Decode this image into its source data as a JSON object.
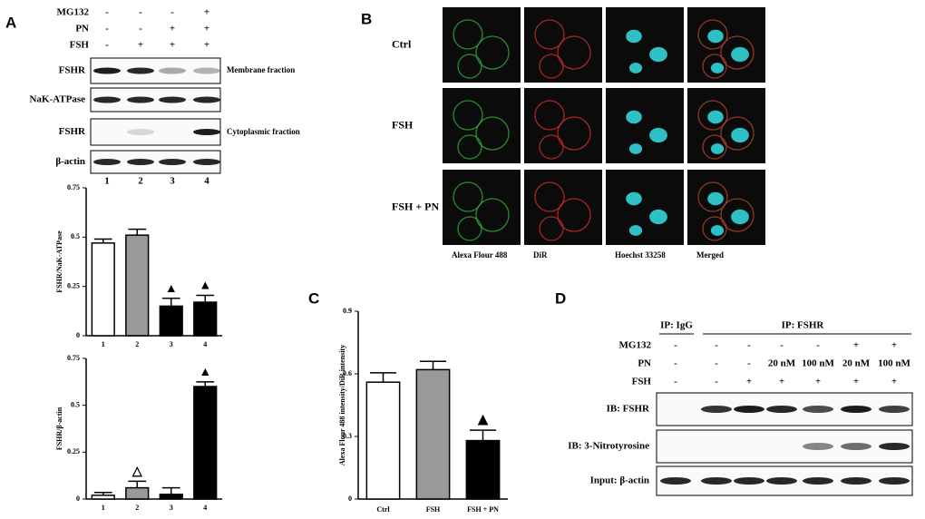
{
  "panel_a": {
    "label": "A",
    "treatments": [
      {
        "name": "MG132",
        "signs": [
          "-",
          "-",
          "-",
          "+"
        ]
      },
      {
        "name": "PN",
        "signs": [
          "-",
          "-",
          "+",
          "+"
        ]
      },
      {
        "name": "FSH",
        "signs": [
          "-",
          "+",
          "+",
          "+"
        ]
      }
    ],
    "blots": [
      "FSHR",
      "NaK-ATPase",
      "FSHR",
      "β-actin"
    ],
    "fractions": [
      "Membrane fraction",
      "Cytoplasmic fraction"
    ],
    "lanes": [
      "1",
      "2",
      "3",
      "4"
    ]
  },
  "panel_b": {
    "label": "B",
    "rows": [
      "Ctrl",
      "FSH",
      "FSH + PN"
    ],
    "columns": [
      "Alexa Flour 488",
      "DiR",
      "Hoechst 33258",
      "Merged"
    ]
  },
  "chart_data": [
    {
      "type": "bar",
      "y_label": "FSHR/NaK-ATPase",
      "categories": [
        "1",
        "2",
        "3",
        "4"
      ],
      "values": [
        0.47,
        0.51,
        0.15,
        0.17
      ],
      "errors": [
        0.02,
        0.03,
        0.04,
        0.035
      ],
      "colors": [
        "#ffffff",
        "#999999",
        "#000000",
        "#000000"
      ],
      "markers": [
        null,
        null,
        "▲",
        "▲"
      ],
      "ylim": [
        0,
        0.75
      ],
      "yticks": [
        0,
        0.25,
        0.5,
        0.75
      ]
    },
    {
      "type": "bar",
      "y_label": "FSHR/β-actin",
      "categories": [
        "1",
        "2",
        "3",
        "4"
      ],
      "values": [
        0.02,
        0.06,
        0.025,
        0.6
      ],
      "errors": [
        0.015,
        0.035,
        0.035,
        0.025
      ],
      "colors": [
        "#ffffff",
        "#999999",
        "#000000",
        "#000000"
      ],
      "markers": [
        null,
        "△",
        null,
        "▲"
      ],
      "ylim": [
        0,
        0.75
      ],
      "yticks": [
        0,
        0.25,
        0.5,
        0.75
      ]
    },
    {
      "type": "bar",
      "label": "C",
      "y_label": "Alexa Flour 488 intensity/DiR intensity",
      "categories": [
        "Ctrl",
        "FSH",
        "FSH + PN"
      ],
      "values": [
        0.56,
        0.62,
        0.28
      ],
      "errors": [
        0.045,
        0.04,
        0.05
      ],
      "colors": [
        "#ffffff",
        "#999999",
        "#000000"
      ],
      "markers": [
        null,
        null,
        "▲"
      ],
      "ylim": [
        0,
        0.9
      ],
      "yticks": [
        0,
        0.3,
        0.6,
        0.9
      ]
    }
  ],
  "panel_d": {
    "label": "D",
    "groups": [
      "IP: IgG",
      "IP: FSHR"
    ],
    "treatments": [
      {
        "name": "MG132",
        "signs": [
          "-",
          "-",
          "-",
          "-",
          "-",
          "+",
          "+"
        ]
      },
      {
        "name": "PN",
        "signs": [
          "-",
          "-",
          "-",
          "20 nM",
          "100 nM",
          "20 nM",
          "100 nM"
        ]
      },
      {
        "name": "FSH",
        "signs": [
          "-",
          "-",
          "+",
          "+",
          "+",
          "+",
          "+"
        ]
      }
    ],
    "blots": [
      "IB: FSHR",
      "IB: 3-Nitrotyrosine",
      "Input: β-actin"
    ]
  }
}
